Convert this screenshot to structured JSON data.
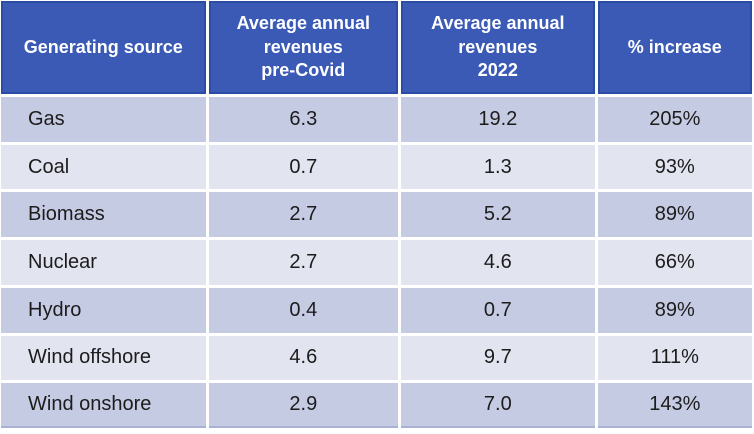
{
  "chart_data": {
    "type": "table",
    "columns": [
      "Generating source",
      "Average annual revenues pre-Covid",
      "Average annual revenues 2022",
      "% increase"
    ],
    "rows": [
      [
        "Gas",
        6.3,
        19.2,
        "205%"
      ],
      [
        "Coal",
        0.7,
        1.3,
        "93%"
      ],
      [
        "Biomass",
        2.7,
        5.2,
        "89%"
      ],
      [
        "Nuclear",
        2.7,
        4.6,
        "66%"
      ],
      [
        "Hydro",
        0.4,
        0.7,
        "89%"
      ],
      [
        "Wind offshore",
        4.6,
        9.7,
        "111%"
      ],
      [
        "Wind onshore",
        2.9,
        7.0,
        "143%"
      ]
    ],
    "layout": {
      "header_position": "top",
      "row_striping": "alternating",
      "units_note": ""
    }
  },
  "table": {
    "headers": [
      {
        "lines": [
          "Generating source"
        ]
      },
      {
        "lines": [
          "Average annual",
          "revenues",
          "pre-Covid"
        ]
      },
      {
        "lines": [
          "Average annual",
          "revenues",
          "2022"
        ]
      },
      {
        "lines": [
          "% increase"
        ]
      }
    ],
    "rows": [
      [
        "Gas",
        "6.3",
        "19.2",
        "205%"
      ],
      [
        "Coal",
        "0.7",
        "1.3",
        "93%"
      ],
      [
        "Biomass",
        "2.7",
        "5.2",
        "89%"
      ],
      [
        "Nuclear",
        "2.7",
        "4.6",
        "66%"
      ],
      [
        "Hydro",
        "0.4",
        "0.7",
        "89%"
      ],
      [
        "Wind offshore",
        "4.6",
        "9.7",
        "111%"
      ],
      [
        "Wind onshore",
        "2.9",
        "7.0",
        "143%"
      ]
    ]
  },
  "colors": {
    "header_background": "#3a5ab5",
    "header_border": "#2b4ca3",
    "header_text": "#ffffff",
    "row_odd_background": "#c6cbe4",
    "row_even_background": "#e2e4f0",
    "body_text": "#1c1c1c",
    "separator": "#ffffff",
    "table_bottom_border": "#aab3d4"
  }
}
